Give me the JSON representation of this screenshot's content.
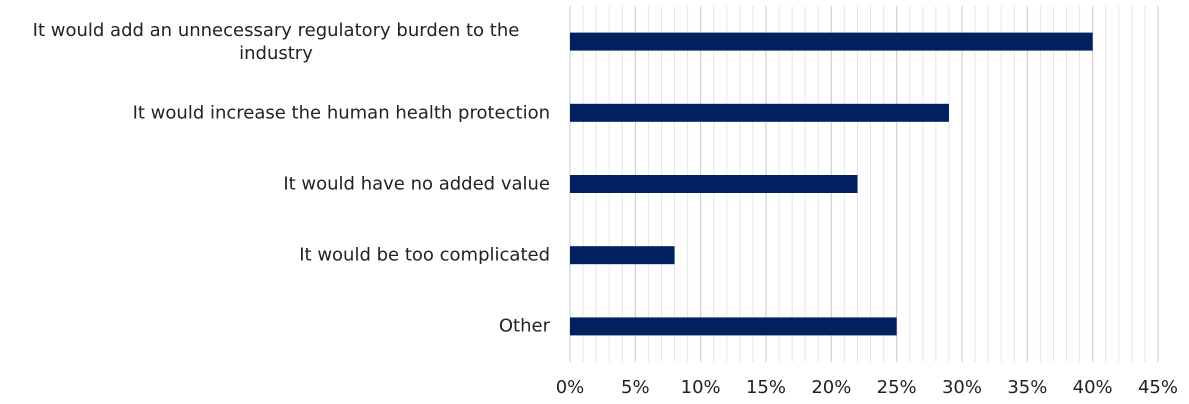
{
  "chart_data": {
    "type": "barh",
    "categories": [
      "It would add an unnecessary regulatory burden to the industry",
      "It would increase the human health protection",
      "It would have no added value",
      "It would be too complicated",
      "Other"
    ],
    "values": [
      40,
      29,
      22,
      8,
      25
    ],
    "color": "#002060",
    "xlim": [
      0,
      45
    ],
    "xticks": [
      {
        "value": 0,
        "label": "0%"
      },
      {
        "value": 5,
        "label": "5%"
      },
      {
        "value": 10,
        "label": "10%"
      },
      {
        "value": 15,
        "label": "15%"
      },
      {
        "value": 20,
        "label": "20%"
      },
      {
        "value": 25,
        "label": "25%"
      },
      {
        "value": 30,
        "label": "30%"
      },
      {
        "value": 35,
        "label": "35%"
      },
      {
        "value": 40,
        "label": "40%"
      },
      {
        "value": 45,
        "label": "45%"
      }
    ],
    "minor_xticks": [
      1,
      2,
      3,
      4,
      6,
      7,
      8,
      9,
      11,
      12,
      13,
      14,
      16,
      17,
      18,
      19,
      21,
      22,
      23,
      24,
      26,
      27,
      28,
      29,
      31,
      32,
      33,
      34,
      36,
      37,
      38,
      39,
      41,
      42,
      43,
      44
    ],
    "grid": true
  }
}
